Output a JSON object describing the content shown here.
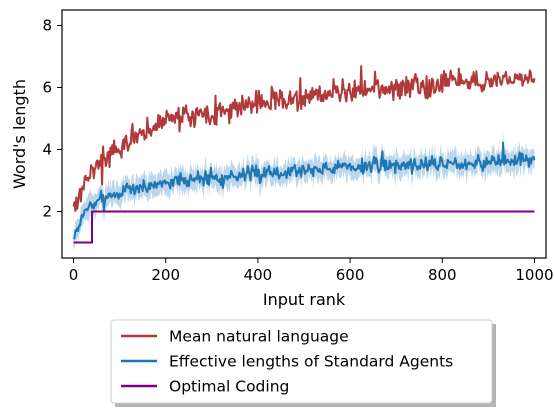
{
  "chart_data": {
    "type": "line",
    "title": "",
    "xlabel": "Input rank",
    "ylabel": "Word's length",
    "xlim": [
      -25,
      1025
    ],
    "ylim": [
      0.5,
      8.5
    ],
    "xticks": [
      0,
      200,
      400,
      600,
      800,
      1000
    ],
    "yticks": [
      2,
      4,
      6,
      8
    ],
    "grid": false,
    "legend_position": "below",
    "series": [
      {
        "name": "Mean natural language",
        "color": "#b03a3a",
        "trend_x": [
          0,
          10,
          20,
          40,
          60,
          80,
          100,
          140,
          200,
          250,
          300,
          400,
          500,
          600,
          700,
          800,
          900,
          1000
        ],
        "trend_y": [
          2.1,
          2.4,
          2.8,
          3.3,
          3.6,
          3.8,
          4.0,
          4.5,
          4.9,
          5.1,
          5.2,
          5.5,
          5.7,
          5.9,
          6.0,
          6.1,
          6.25,
          6.3
        ],
        "noise": 0.55
      },
      {
        "name": "Effective lengths of Standard Agents",
        "color": "#1f77b4",
        "band_color": "#a6c8e6",
        "trend_x": [
          0,
          10,
          20,
          40,
          60,
          80,
          100,
          150,
          200,
          300,
          400,
          500,
          600,
          700,
          800,
          900,
          1000
        ],
        "trend_y": [
          1.1,
          1.5,
          1.9,
          2.2,
          2.4,
          2.5,
          2.6,
          2.8,
          2.95,
          3.1,
          3.2,
          3.35,
          3.45,
          3.5,
          3.55,
          3.6,
          3.65
        ],
        "noise": 0.35,
        "band": 0.35
      },
      {
        "name": "Optimal Coding",
        "color": "#800080",
        "x": [
          0,
          40,
          40,
          1000
        ],
        "y": [
          1,
          1,
          2,
          2
        ]
      }
    ]
  }
}
